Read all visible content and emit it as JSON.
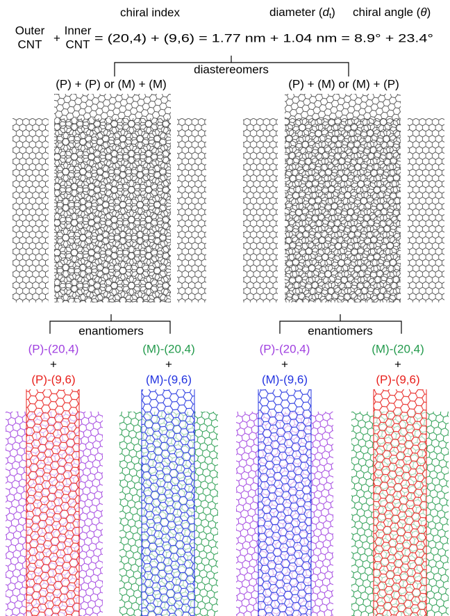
{
  "header": {
    "chiral_index": "chiral index",
    "diameter": {
      "text": "diameter (",
      "symbol": "d",
      "subscript": "t",
      "close": ")"
    },
    "chiral_angle": {
      "text": "chiral angle (",
      "symbol": "θ",
      "close": ")"
    }
  },
  "equation": {
    "outer": [
      "Outer",
      "CNT"
    ],
    "plus": "+",
    "inner": [
      "Inner",
      "CNT"
    ],
    "expression": "= (20,4) + (9,6) = 1.77 nm + 1.04 nm = 8.9° + 23.4°"
  },
  "diastereomers": {
    "label": "diastereomers",
    "left": "(P) + (P) or (M) + (M)",
    "right": "(P) + (M) or (M) + (P)"
  },
  "enantiomers": [
    {
      "label": "enantiomers",
      "pairs": [
        {
          "outer": "(P)-(20,4)",
          "plus": "+",
          "inner": "(P)-(9,6)"
        },
        {
          "outer": "(M)-(20,4)",
          "plus": "+",
          "inner": "(M)-(9,6)"
        }
      ]
    },
    {
      "label": "enantiomers",
      "pairs": [
        {
          "outer": "(P)-(20,4)",
          "plus": "+",
          "inner": "(M)-(9,6)"
        },
        {
          "outer": "(M)-(20,4)",
          "plus": "+",
          "inner": "(P)-(9,6)"
        }
      ]
    }
  ]
}
